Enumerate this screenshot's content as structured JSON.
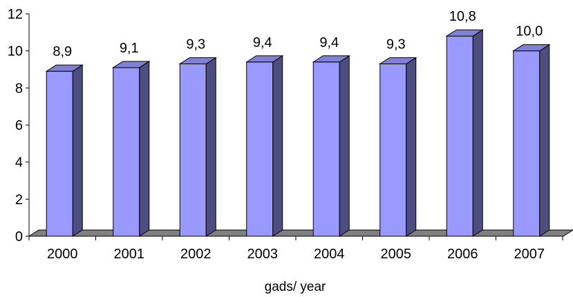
{
  "chart_data": {
    "type": "bar",
    "style": "3d-column",
    "title": "",
    "xlabel": "gads/ year",
    "ylabel": "",
    "categories": [
      "2000",
      "2001",
      "2002",
      "2003",
      "2004",
      "2005",
      "2006",
      "2007"
    ],
    "values": [
      8.9,
      9.1,
      9.3,
      9.4,
      9.4,
      9.3,
      10.8,
      10.0
    ],
    "data_labels": [
      "8,9",
      "9,1",
      "9,3",
      "9,4",
      "9,4",
      "9,3",
      "10,8",
      "10,0"
    ],
    "ylim": [
      0,
      12
    ],
    "yticks": [
      0,
      2,
      4,
      6,
      8,
      10,
      12
    ],
    "ytick_labels": [
      "0",
      "2",
      "4",
      "6",
      "8",
      "10",
      "12"
    ],
    "grid": false,
    "legend": "none",
    "colors": {
      "bar_front": "#9999FF",
      "bar_side": "#4D4D80",
      "bar_top": "#8080D4",
      "floor": "#808080",
      "axis": "#000000"
    }
  }
}
